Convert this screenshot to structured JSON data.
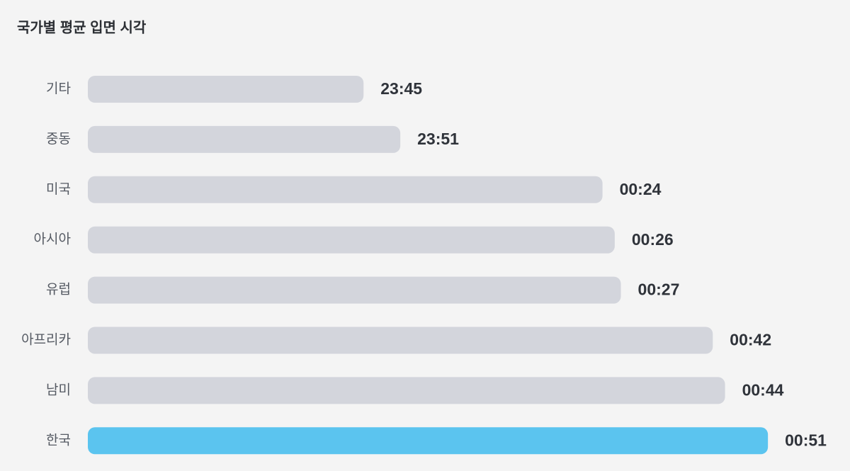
{
  "chart_data": {
    "type": "bar",
    "orientation": "horizontal",
    "title": "국가별 평균 입면 시각",
    "categories": [
      "기타",
      "중동",
      "미국",
      "아시아",
      "유럽",
      "아프리카",
      "남미",
      "한국"
    ],
    "values": [
      23.75,
      23.85,
      24.4,
      24.4333,
      24.45,
      24.7,
      24.7333,
      24.85
    ],
    "value_labels": [
      "23:45",
      "23:51",
      "00:24",
      "00:26",
      "00:27",
      "00:42",
      "00:44",
      "00:51"
    ],
    "colors": [
      "#d3d5dc",
      "#d3d5dc",
      "#d3d5dc",
      "#d3d5dc",
      "#d3d5dc",
      "#d3d5dc",
      "#d3d5dc",
      "#5bc4ef"
    ],
    "xlim": [
      23,
      25
    ]
  }
}
